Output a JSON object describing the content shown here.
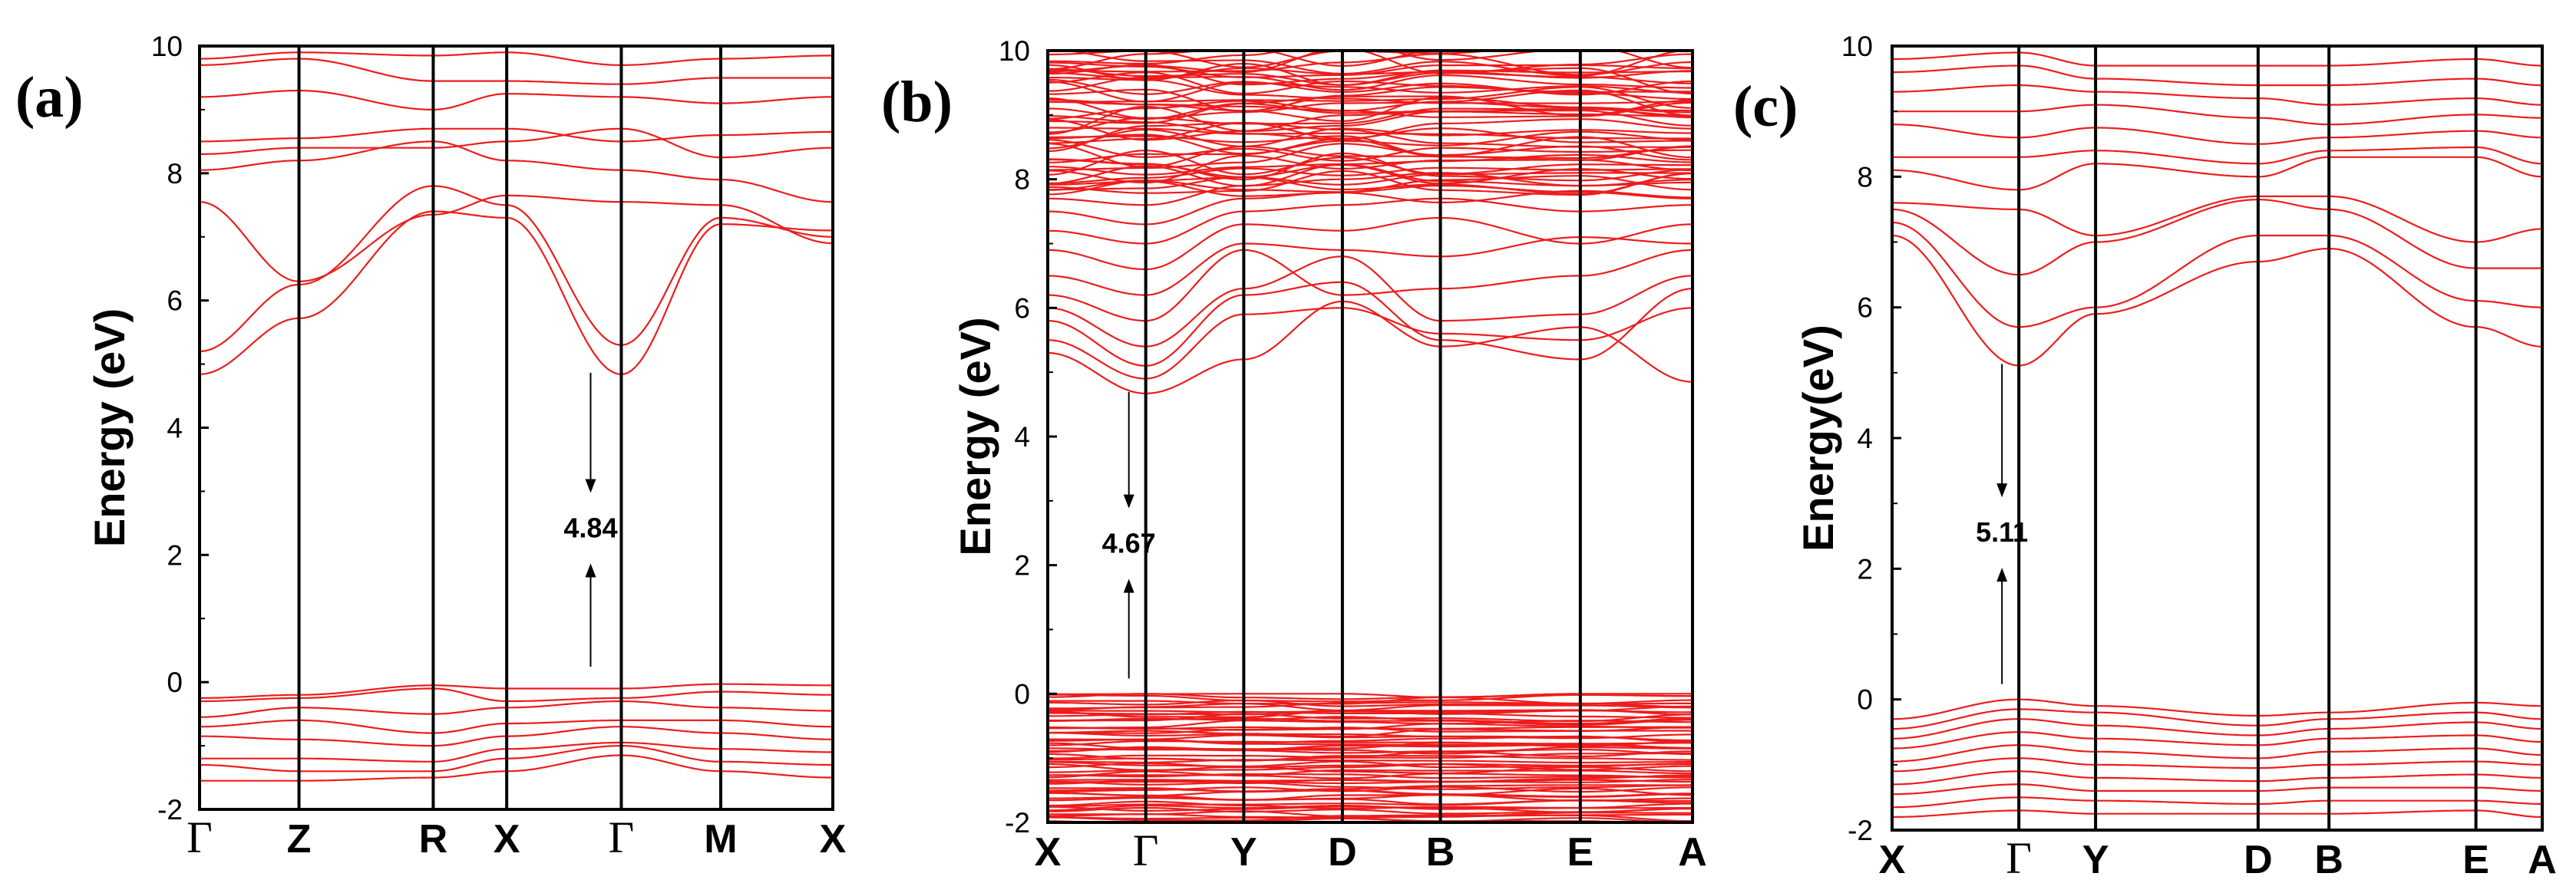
{
  "colors": {
    "bands": "#ee1c1c",
    "frame": "#000000"
  },
  "chart_data": [
    {
      "type": "line",
      "panel": "(a)",
      "ylabel": "Energy (eV)",
      "ylim": [
        -2,
        10
      ],
      "yticks": [
        -2,
        0,
        2,
        4,
        6,
        8,
        10
      ],
      "kpoints": [
        "Γ",
        "Z",
        "R",
        "X",
        "Γ",
        "M",
        "X"
      ],
      "kpos": [
        0,
        0.157,
        0.369,
        0.485,
        0.666,
        0.823,
        1.0
      ],
      "gap": {
        "label": "4.84",
        "value": 4.84,
        "x": 0.666,
        "vbm": 0.0,
        "cbm": 4.84
      },
      "cb_points": [
        [
          4.84,
          5.72,
          7.4,
          7.3,
          4.84,
          7.2,
          7.1
        ],
        [
          5.2,
          6.25,
          7.8,
          7.5,
          5.3,
          7.3,
          7.0
        ],
        [
          7.55,
          6.3,
          7.35,
          7.65,
          7.55,
          7.5,
          6.9
        ],
        [
          8.05,
          8.2,
          8.5,
          8.2,
          8.05,
          7.9,
          7.55
        ],
        [
          8.3,
          8.4,
          8.4,
          8.5,
          8.7,
          8.25,
          8.4
        ],
        [
          8.5,
          8.55,
          8.7,
          8.7,
          8.5,
          8.6,
          8.65
        ],
        [
          9.2,
          9.3,
          9.0,
          9.25,
          9.2,
          9.1,
          9.2
        ],
        [
          9.7,
          9.8,
          9.45,
          9.45,
          9.4,
          9.5,
          9.5
        ],
        [
          9.8,
          9.9,
          9.85,
          9.9,
          9.7,
          9.8,
          9.85
        ]
      ],
      "vb_points": [
        [
          -0.25,
          -0.2,
          -0.05,
          -0.1,
          -0.1,
          -0.03,
          -0.05
        ],
        [
          -0.3,
          -0.25,
          -0.1,
          -0.3,
          -0.25,
          -0.15,
          -0.2
        ],
        [
          -0.55,
          -0.4,
          -0.5,
          -0.4,
          -0.3,
          -0.4,
          -0.45
        ],
        [
          -0.7,
          -0.6,
          -0.8,
          -0.65,
          -0.6,
          -0.6,
          -0.7
        ],
        [
          -0.85,
          -0.9,
          -1.0,
          -0.85,
          -0.7,
          -0.8,
          -0.9
        ],
        [
          -1.2,
          -1.2,
          -1.25,
          -1.05,
          -0.95,
          -1.05,
          -1.1
        ],
        [
          -1.3,
          -1.4,
          -1.4,
          -1.2,
          -1.0,
          -1.25,
          -1.3
        ],
        [
          -1.55,
          -1.55,
          -1.5,
          -1.4,
          -1.15,
          -1.4,
          -1.5
        ]
      ]
    },
    {
      "type": "line",
      "panel": "(b)",
      "ylabel": "Energy (eV)",
      "ylim": [
        -2,
        10
      ],
      "yticks": [
        -2,
        0,
        2,
        4,
        6,
        8,
        10
      ],
      "kpoints": [
        "X",
        "Γ",
        "Y",
        "D",
        "B",
        "E",
        "A"
      ],
      "kpos": [
        0,
        0.152,
        0.304,
        0.457,
        0.609,
        0.826,
        1.0
      ],
      "gap": {
        "label": "4.67",
        "value": 4.67,
        "x": 0.152,
        "vbm": 0.0,
        "cbm": 4.67
      },
      "dense": {
        "vb_count": 60,
        "cb_count": 50,
        "vb_range": [
          -2,
          0
        ],
        "cb_range": [
          7.8,
          10
        ]
      },
      "cb_points": [
        [
          5.3,
          4.67,
          5.2,
          6.1,
          5.4,
          5.7,
          4.85
        ],
        [
          5.5,
          4.9,
          5.9,
          6.0,
          5.6,
          5.5,
          6.0
        ],
        [
          5.8,
          5.1,
          6.2,
          6.4,
          5.5,
          5.2,
          6.3
        ],
        [
          6.0,
          5.4,
          6.3,
          6.8,
          5.8,
          5.9,
          6.5
        ],
        [
          6.2,
          5.8,
          6.9,
          6.2,
          6.3,
          6.5,
          6.9
        ],
        [
          6.5,
          6.2,
          7.0,
          6.9,
          6.8,
          7.1,
          7.0
        ],
        [
          6.9,
          6.6,
          7.3,
          7.2,
          7.4,
          7.0,
          7.3
        ],
        [
          7.2,
          7.0,
          7.5,
          7.6,
          7.7,
          7.5,
          7.6
        ],
        [
          7.5,
          7.3,
          7.7,
          7.8,
          7.9,
          7.8,
          7.7
        ],
        [
          7.7,
          7.6,
          7.9,
          8.0,
          8.1,
          7.9,
          7.95
        ]
      ],
      "vb_points": []
    },
    {
      "type": "line",
      "panel": "(c)",
      "ylabel": "Energy(eV)",
      "ylim": [
        -2,
        10
      ],
      "yticks": [
        -2,
        0,
        2,
        4,
        6,
        8,
        10
      ],
      "kpoints": [
        "X",
        "Γ",
        "Y",
        "D",
        "B",
        "E",
        "A"
      ],
      "kpos": [
        0,
        0.195,
        0.313,
        0.563,
        0.672,
        0.898,
        1.0
      ],
      "gap": {
        "label": "5.11",
        "value": 5.11,
        "x": 0.195,
        "vbm": 0.0,
        "cbm": 5.11
      },
      "cb_points": [
        [
          7.1,
          5.11,
          5.9,
          6.7,
          6.9,
          5.7,
          5.4
        ],
        [
          7.3,
          5.7,
          6.0,
          7.1,
          7.1,
          6.1,
          6.0
        ],
        [
          7.5,
          6.5,
          7.0,
          7.65,
          7.5,
          6.6,
          6.6
        ],
        [
          7.6,
          7.5,
          7.1,
          7.7,
          7.7,
          7.0,
          7.2
        ],
        [
          8.1,
          7.8,
          8.2,
          8.0,
          8.3,
          8.3,
          8.0
        ],
        [
          8.3,
          8.3,
          8.4,
          8.2,
          8.4,
          8.45,
          8.2
        ],
        [
          8.8,
          8.6,
          8.75,
          8.5,
          8.6,
          8.7,
          8.6
        ],
        [
          9.0,
          9.0,
          9.1,
          8.9,
          8.8,
          8.95,
          8.9
        ],
        [
          9.3,
          9.4,
          9.3,
          9.2,
          9.1,
          9.2,
          9.1
        ],
        [
          9.6,
          9.7,
          9.5,
          9.4,
          9.4,
          9.5,
          9.4
        ],
        [
          9.8,
          9.9,
          9.7,
          9.7,
          9.7,
          9.8,
          9.7
        ]
      ],
      "vb_points": [
        [
          -0.3,
          0.0,
          -0.1,
          -0.25,
          -0.2,
          -0.05,
          -0.1
        ],
        [
          -0.45,
          -0.15,
          -0.2,
          -0.4,
          -0.3,
          -0.2,
          -0.3
        ],
        [
          -0.6,
          -0.3,
          -0.4,
          -0.55,
          -0.45,
          -0.35,
          -0.45
        ],
        [
          -0.75,
          -0.5,
          -0.6,
          -0.7,
          -0.6,
          -0.55,
          -0.65
        ],
        [
          -0.95,
          -0.7,
          -0.8,
          -0.9,
          -0.8,
          -0.75,
          -0.85
        ],
        [
          -1.1,
          -0.9,
          -1.0,
          -1.05,
          -1.0,
          -0.95,
          -1.0
        ],
        [
          -1.3,
          -1.1,
          -1.2,
          -1.25,
          -1.2,
          -1.15,
          -1.2
        ],
        [
          -1.45,
          -1.3,
          -1.4,
          -1.4,
          -1.35,
          -1.35,
          -1.4
        ],
        [
          -1.65,
          -1.5,
          -1.55,
          -1.6,
          -1.55,
          -1.55,
          -1.6
        ],
        [
          -1.8,
          -1.7,
          -1.75,
          -1.75,
          -1.75,
          -1.7,
          -1.8
        ]
      ]
    }
  ]
}
